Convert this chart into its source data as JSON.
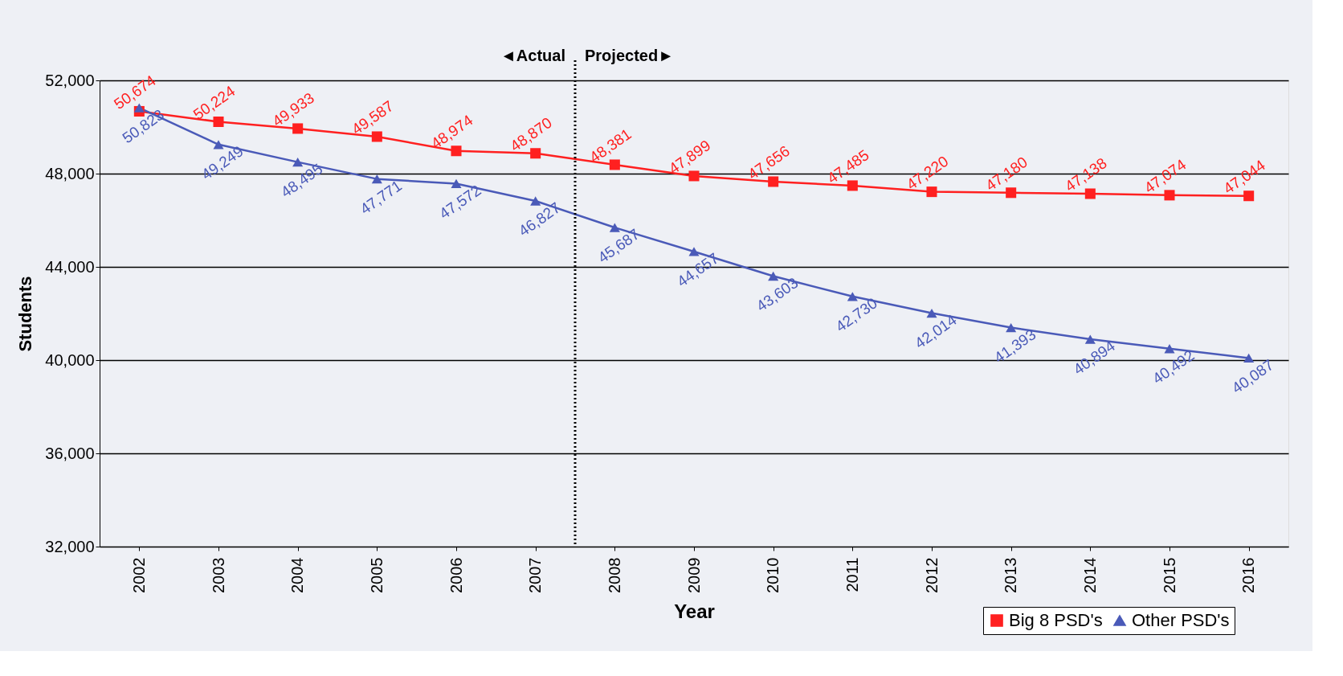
{
  "chart_data": {
    "type": "line",
    "xlabel": "Year",
    "ylabel": "Students",
    "x": [
      2002,
      2003,
      2004,
      2005,
      2006,
      2007,
      2008,
      2009,
      2010,
      2011,
      2012,
      2013,
      2014,
      2015,
      2016
    ],
    "xlim": [
      2001.5,
      2016.5
    ],
    "xticks": [
      2002,
      2003,
      2004,
      2005,
      2006,
      2007,
      2008,
      2009,
      2010,
      2011,
      2012,
      2013,
      2014,
      2015,
      2016
    ],
    "ylim": [
      32000,
      52000
    ],
    "yticks": [
      {
        "value": 32000,
        "label": "32,000"
      },
      {
        "value": 36000,
        "label": "36,000"
      },
      {
        "value": 40000,
        "label": "40,000"
      },
      {
        "value": 44000,
        "label": "44,000"
      },
      {
        "value": 48000,
        "label": "48,000"
      },
      {
        "value": 52000,
        "label": "52,000"
      }
    ],
    "series": [
      {
        "name": "Big 8 PSD's",
        "color": "#ff2020",
        "marker": "square",
        "values": [
          50674,
          50224,
          49933,
          49587,
          48974,
          48870,
          48381,
          47899,
          47656,
          47485,
          47220,
          47180,
          47138,
          47074,
          47044
        ],
        "value_labels": [
          "50,674",
          "50,224",
          "49,933",
          "49,587",
          "48,974",
          "48,870",
          "48,381",
          "47,899",
          "47,656",
          "47,485",
          "47,220",
          "47,180",
          "47,138",
          "47,074",
          "47,044"
        ]
      },
      {
        "name": "Other PSD's",
        "color": "#4a5ab8",
        "marker": "triangle",
        "values": [
          50823,
          49249,
          48495,
          47771,
          47572,
          46827,
          45687,
          44657,
          43603,
          42730,
          42014,
          41393,
          40894,
          40492,
          40087
        ],
        "value_labels": [
          "50,823",
          "49,249",
          "48,495",
          "47,771",
          "47,572",
          "46,827",
          "45,687",
          "44,657",
          "43,603",
          "42,730",
          "42,014",
          "41,393",
          "40,894",
          "40,492",
          "40,087"
        ]
      }
    ],
    "ref_lines": [
      {
        "axis": "x",
        "value": 2007.5,
        "color": "#000000",
        "line_style": "dotted"
      }
    ],
    "annotations": [
      "◄Actual",
      "Projected►"
    ],
    "grid": "y",
    "legend": "bottom right",
    "line_style": "solid"
  }
}
